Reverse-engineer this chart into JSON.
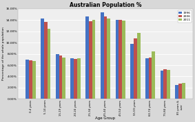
{
  "title": "Australian Population %",
  "xlabel": "Age Group",
  "ylabel": "Percentage of the whole population",
  "categories": [
    "0-4 years",
    "5-14 years",
    "15-19 years",
    "20-24 years",
    "25-34 years",
    "35-44 years",
    "45-54 years",
    "55-59 years",
    "60-74 years",
    "75-84 years",
    "85 years &\nover"
  ],
  "series": {
    "1996": [
      7.0,
      14.3,
      7.9,
      7.2,
      14.6,
      15.3,
      14.0,
      9.8,
      7.2,
      5.0,
      2.5
    ],
    "2006": [
      6.8,
      13.6,
      7.7,
      7.1,
      13.8,
      14.6,
      14.0,
      10.7,
      7.3,
      5.3,
      2.7
    ],
    "2011": [
      6.7,
      12.4,
      7.3,
      7.2,
      14.0,
      14.2,
      13.9,
      11.7,
      8.4,
      5.1,
      2.9
    ]
  },
  "colors": {
    "1996": "#4472C4",
    "2006": "#C0504D",
    "2011": "#9BBB59"
  },
  "ylim": [
    0,
    16
  ],
  "yticks": [
    0,
    2,
    4,
    6,
    8,
    10,
    12,
    14,
    16
  ],
  "ytick_labels": [
    "0.00%",
    "2.00%",
    "4.00%",
    "6.00%",
    "8.00%",
    "10.00%",
    "12.00%",
    "14.00%",
    "16.00%"
  ],
  "background_color": "#D8D8D8",
  "plot_bg_color": "#EFEFEF"
}
